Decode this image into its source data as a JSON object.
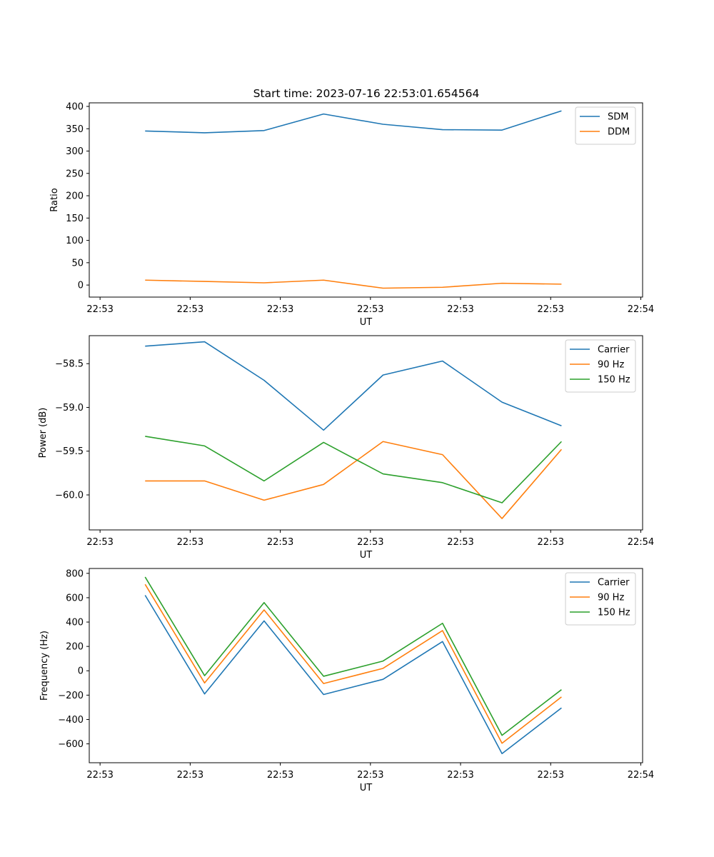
{
  "figure": {
    "title": "Start time: 2023-07-16 22:53:01.654564"
  },
  "chart_data": [
    {
      "type": "line",
      "title": "Start time: 2023-07-16 22:53:01.654564",
      "xlabel": "UT",
      "ylabel": "Ratio",
      "x_ticks": [
        "22:53",
        "22:53",
        "22:53",
        "22:53",
        "22:53",
        "22:53",
        "22:54"
      ],
      "xlim": [
        -0.12,
        6.02
      ],
      "ylim": [
        -27,
        408
      ],
      "y_ticks": [
        0,
        50,
        100,
        150,
        200,
        250,
        300,
        350,
        400
      ],
      "y_tick_labels": [
        "0",
        "50",
        "100",
        "150",
        "200",
        "250",
        "300",
        "350",
        "400"
      ],
      "x": [
        0.5,
        1.16,
        1.82,
        2.48,
        3.14,
        3.8,
        4.46,
        5.12
      ],
      "series": [
        {
          "name": "SDM",
          "color": "#1f77b4",
          "values": [
            345,
            341,
            346,
            383,
            360,
            348,
            347,
            390
          ]
        },
        {
          "name": "DDM",
          "color": "#ff7f0e",
          "values": [
            11,
            8,
            5,
            11,
            -7,
            -5,
            4,
            2
          ]
        }
      ],
      "legend": "top-right"
    },
    {
      "type": "line",
      "title": "",
      "xlabel": "UT",
      "ylabel": "Power (dB)",
      "x_ticks": [
        "22:53",
        "22:53",
        "22:53",
        "22:53",
        "22:53",
        "22:53",
        "22:54"
      ],
      "xlim": [
        -0.12,
        6.02
      ],
      "ylim": [
        -60.4,
        -58.18
      ],
      "y_ticks": [
        -60.0,
        -59.5,
        -59.0,
        -58.5
      ],
      "y_tick_labels": [
        "−60.0",
        "−59.5",
        "−59.0",
        "−58.5"
      ],
      "x": [
        0.5,
        1.16,
        1.82,
        2.48,
        3.14,
        3.8,
        4.46,
        5.12
      ],
      "series": [
        {
          "name": "Carrier",
          "color": "#1f77b4",
          "values": [
            -58.3,
            -58.25,
            -58.69,
            -59.26,
            -58.63,
            -58.47,
            -58.94,
            -59.21
          ]
        },
        {
          "name": "90 Hz",
          "color": "#ff7f0e",
          "values": [
            -59.84,
            -59.84,
            -60.06,
            -59.88,
            -59.39,
            -59.54,
            -60.27,
            -59.48
          ]
        },
        {
          "name": "150 Hz",
          "color": "#2ca02c",
          "values": [
            -59.33,
            -59.44,
            -59.84,
            -59.4,
            -59.76,
            -59.86,
            -60.09,
            -59.39
          ]
        }
      ],
      "legend": "top-right"
    },
    {
      "type": "line",
      "title": "",
      "xlabel": "UT",
      "ylabel": "Frequency (Hz)",
      "x_ticks": [
        "22:53",
        "22:53",
        "22:53",
        "22:53",
        "22:53",
        "22:53",
        "22:54"
      ],
      "xlim": [
        -0.12,
        6.02
      ],
      "ylim": [
        -755,
        840
      ],
      "y_ticks": [
        -600,
        -400,
        -200,
        0,
        200,
        400,
        600,
        800
      ],
      "y_tick_labels": [
        "−600",
        "−400",
        "−200",
        "0",
        "200",
        "400",
        "600",
        "800"
      ],
      "x": [
        0.5,
        1.16,
        1.82,
        2.48,
        3.14,
        3.8,
        4.46,
        5.12
      ],
      "series": [
        {
          "name": "Carrier",
          "color": "#1f77b4",
          "values": [
            620,
            -190,
            410,
            -195,
            -70,
            240,
            -680,
            -305
          ]
        },
        {
          "name": "90 Hz",
          "color": "#ff7f0e",
          "values": [
            710,
            -100,
            500,
            -105,
            20,
            330,
            -595,
            -215
          ]
        },
        {
          "name": "150 Hz",
          "color": "#2ca02c",
          "values": [
            770,
            -40,
            560,
            -45,
            80,
            390,
            -530,
            -155
          ]
        }
      ],
      "legend": "top-right"
    }
  ]
}
